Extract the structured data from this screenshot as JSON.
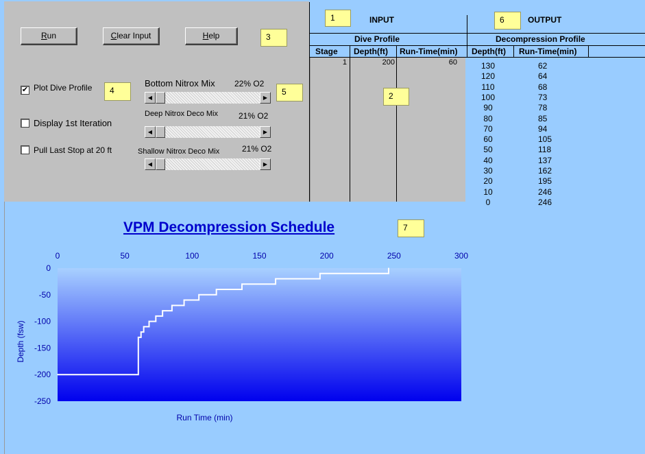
{
  "buttons": {
    "run_label": "un",
    "run_underline": "R",
    "clear_label": "lear Input",
    "clear_underline": "C",
    "help_label": "elp",
    "help_underline": "H"
  },
  "callouts": {
    "c1": "1",
    "c2": "2",
    "c3": "3",
    "c4": "4",
    "c5": "5",
    "c6": "6",
    "c7": "7"
  },
  "checkboxes": {
    "plot": {
      "label": "Plot Dive Profile",
      "checked_mark": "✔"
    },
    "iteration": {
      "label": "Display 1st Iteration"
    },
    "last_stop": {
      "label": "Pull Last Stop at 20 ft"
    }
  },
  "mixes": {
    "bottom": {
      "label": "Bottom Nitrox Mix",
      "value": "22% O2",
      "level": 0.05
    },
    "deep": {
      "label": "Deep Nitrox Deco Mix",
      "value": "21% O2",
      "level": 0.0
    },
    "shallow": {
      "label": "Shallow Nitrox Deco Mix",
      "value": "21% O2",
      "level": 0.0
    }
  },
  "input": {
    "title": "INPUT",
    "subtitle": "Dive Profile",
    "col_stage": "Stage",
    "col_depth": "Depth(ft)",
    "col_runtime": "Run-Time(min)",
    "rows": [
      {
        "stage": "1",
        "depth": "200",
        "runtime": "60"
      }
    ]
  },
  "output": {
    "title": "OUTPUT",
    "subtitle": "Decompression Profile",
    "col_depth": "Depth(ft)",
    "col_runtime": "Run-Time(min)",
    "rows": [
      {
        "depth": "130",
        "runtime": "62"
      },
      {
        "depth": "120",
        "runtime": "64"
      },
      {
        "depth": "110",
        "runtime": "68"
      },
      {
        "depth": "100",
        "runtime": "73"
      },
      {
        "depth": "90",
        "runtime": "78"
      },
      {
        "depth": "80",
        "runtime": "85"
      },
      {
        "depth": "70",
        "runtime": "94"
      },
      {
        "depth": "60",
        "runtime": "105"
      },
      {
        "depth": "50",
        "runtime": "118"
      },
      {
        "depth": "40",
        "runtime": "137"
      },
      {
        "depth": "30",
        "runtime": "162"
      },
      {
        "depth": "20",
        "runtime": "195"
      },
      {
        "depth": "10",
        "runtime": "246"
      },
      {
        "depth": "0",
        "runtime": "246"
      }
    ]
  },
  "chart_data": {
    "type": "line",
    "title": "VPM Decompression Schedule",
    "xlabel": "Run Time (min)",
    "ylabel": "Depth (fsw)",
    "xlim": [
      0,
      300
    ],
    "ylim": [
      -250,
      0
    ],
    "xticks": [
      "0",
      "50",
      "100",
      "150",
      "200",
      "250",
      "300"
    ],
    "yticks": [
      "0",
      "-50",
      "-100",
      "-150",
      "-200",
      "-250"
    ],
    "x_axis_position": "top",
    "grid": false,
    "legend": "none",
    "line_color": "#ffffff",
    "plot_gradient": [
      "#a8d0ff",
      "#0000ee"
    ],
    "series": [
      {
        "x": [
          0,
          60,
          60,
          62,
          62,
          64,
          64,
          68,
          68,
          73,
          73,
          78,
          78,
          85,
          85,
          94,
          94,
          105,
          105,
          118,
          118,
          137,
          137,
          162,
          162,
          195,
          195,
          246,
          246
        ],
        "y": [
          -200,
          -200,
          -130,
          -130,
          -120,
          -120,
          -110,
          -110,
          -100,
          -100,
          -90,
          -90,
          -80,
          -80,
          -70,
          -70,
          -60,
          -60,
          -50,
          -50,
          -40,
          -40,
          -30,
          -30,
          -20,
          -20,
          -10,
          -10,
          0
        ]
      }
    ]
  }
}
